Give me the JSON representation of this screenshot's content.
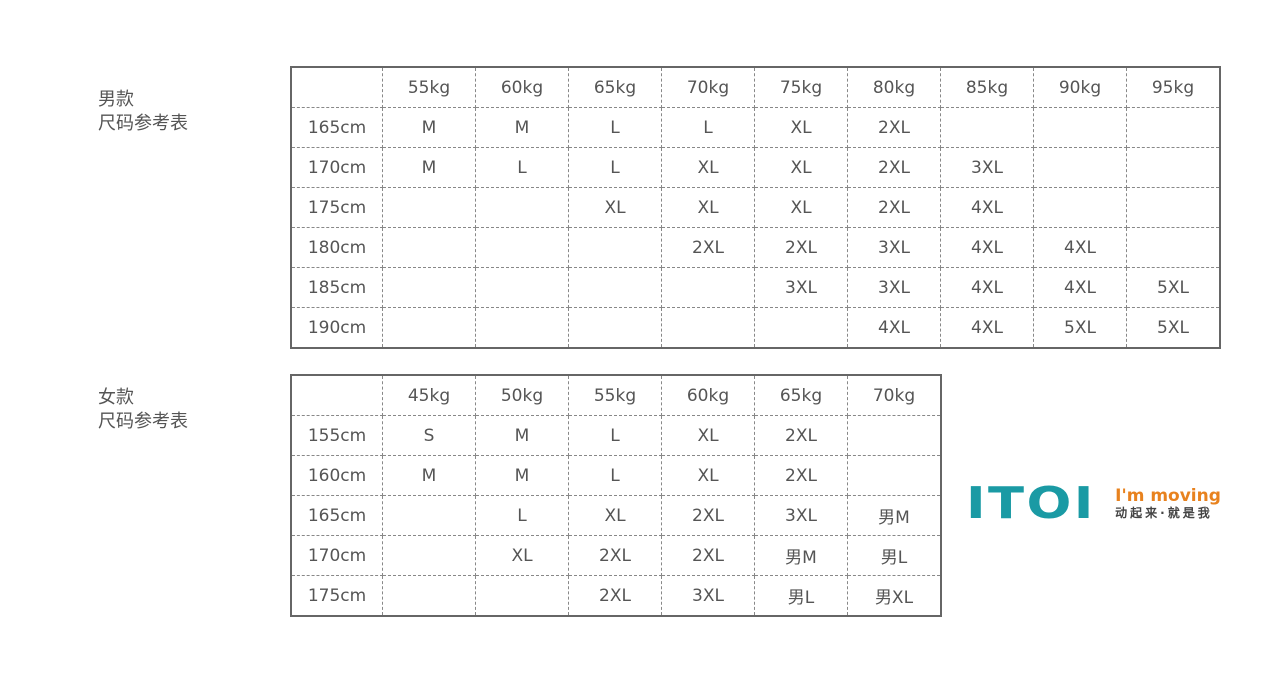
{
  "men": {
    "title1": "男款",
    "title2": "尺码参考表",
    "weights": [
      "55kg",
      "60kg",
      "65kg",
      "70kg",
      "75kg",
      "80kg",
      "85kg",
      "90kg",
      "95kg"
    ],
    "rows": [
      {
        "height": "165cm",
        "sizes": [
          "M",
          "M",
          "L",
          "L",
          "XL",
          "2XL",
          "",
          "",
          ""
        ]
      },
      {
        "height": "170cm",
        "sizes": [
          "M",
          "L",
          "L",
          "XL",
          "XL",
          "2XL",
          "3XL",
          "",
          ""
        ]
      },
      {
        "height": "175cm",
        "sizes": [
          "",
          "",
          "XL",
          "XL",
          "XL",
          "2XL",
          "4XL",
          "",
          ""
        ]
      },
      {
        "height": "180cm",
        "sizes": [
          "",
          "",
          "",
          "2XL",
          "2XL",
          "3XL",
          "4XL",
          "4XL",
          ""
        ]
      },
      {
        "height": "185cm",
        "sizes": [
          "",
          "",
          "",
          "",
          "3XL",
          "3XL",
          "4XL",
          "4XL",
          "5XL"
        ]
      },
      {
        "height": "190cm",
        "sizes": [
          "",
          "",
          "",
          "",
          "",
          "4XL",
          "4XL",
          "5XL",
          "5XL"
        ]
      }
    ]
  },
  "women": {
    "title1": "女款",
    "title2": "尺码参考表",
    "weights": [
      "45kg",
      "50kg",
      "55kg",
      "60kg",
      "65kg",
      "70kg"
    ],
    "rows": [
      {
        "height": "155cm",
        "sizes": [
          "S",
          "M",
          "L",
          "XL",
          "2XL",
          ""
        ]
      },
      {
        "height": "160cm",
        "sizes": [
          "M",
          "M",
          "L",
          "XL",
          "2XL",
          ""
        ]
      },
      {
        "height": "165cm",
        "sizes": [
          "",
          "L",
          "XL",
          "2XL",
          "3XL",
          "男M"
        ]
      },
      {
        "height": "170cm",
        "sizes": [
          "",
          "XL",
          "2XL",
          "2XL",
          "男M",
          "男L"
        ]
      },
      {
        "height": "175cm",
        "sizes": [
          "",
          "",
          "2XL",
          "3XL",
          "男L",
          "男XL"
        ]
      }
    ]
  },
  "logo": {
    "mark": "ITOI",
    "slogan_en": "I'm moving",
    "slogan_cn": "动起来·就是我",
    "colors": {
      "mark": "#1a9aa4",
      "slogan": "#e8821e"
    }
  }
}
